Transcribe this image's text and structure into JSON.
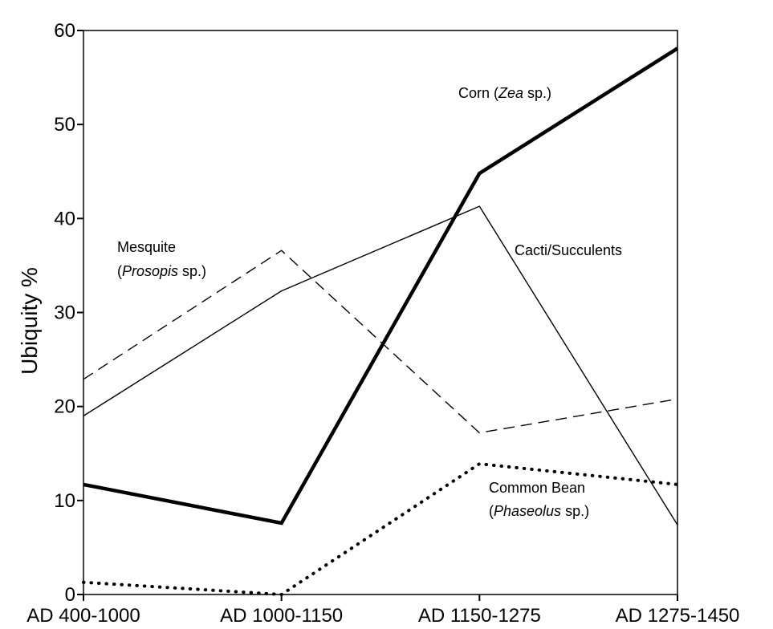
{
  "chart_data": {
    "type": "line",
    "title": "",
    "xlabel": "",
    "ylabel": "Ubiquity %",
    "ylim": [
      0,
      60
    ],
    "yticks": [
      "0",
      "10",
      "20",
      "30",
      "40",
      "50",
      "60"
    ],
    "categories": [
      "AD 400-1000",
      "AD 1000-1150",
      "AD 1150-1275",
      "AD 1275-1450"
    ],
    "grid": false,
    "series": [
      {
        "key": "corn",
        "values": [
          11.7,
          7.6,
          44.8,
          58.1
        ]
      },
      {
        "key": "mesquite",
        "values": [
          22.9,
          36.6,
          17.2,
          20.8
        ]
      },
      {
        "key": "cacti",
        "values": [
          19.0,
          32.3,
          41.3,
          7.4
        ]
      },
      {
        "key": "bean",
        "values": [
          1.3,
          0,
          13.9,
          11.7
        ]
      }
    ],
    "line_styles": {
      "corn": "thick solid",
      "mesquite": "dashed",
      "cacti": "thin solid",
      "bean": "dotted"
    },
    "annotations": {
      "corn": {
        "prefix": "Corn (",
        "italic": "Zea",
        "suffix": " sp.)"
      },
      "mesquite_line1": "Mesquite",
      "mesquite_line2": {
        "prefix": "(",
        "italic": "Prosopis",
        "suffix": " sp.)"
      },
      "cacti": "Cacti/Succulents",
      "bean_line1": "Common Bean",
      "bean_line2": {
        "prefix": "(",
        "italic": "Phaseolus",
        "suffix": " sp.)"
      }
    }
  }
}
